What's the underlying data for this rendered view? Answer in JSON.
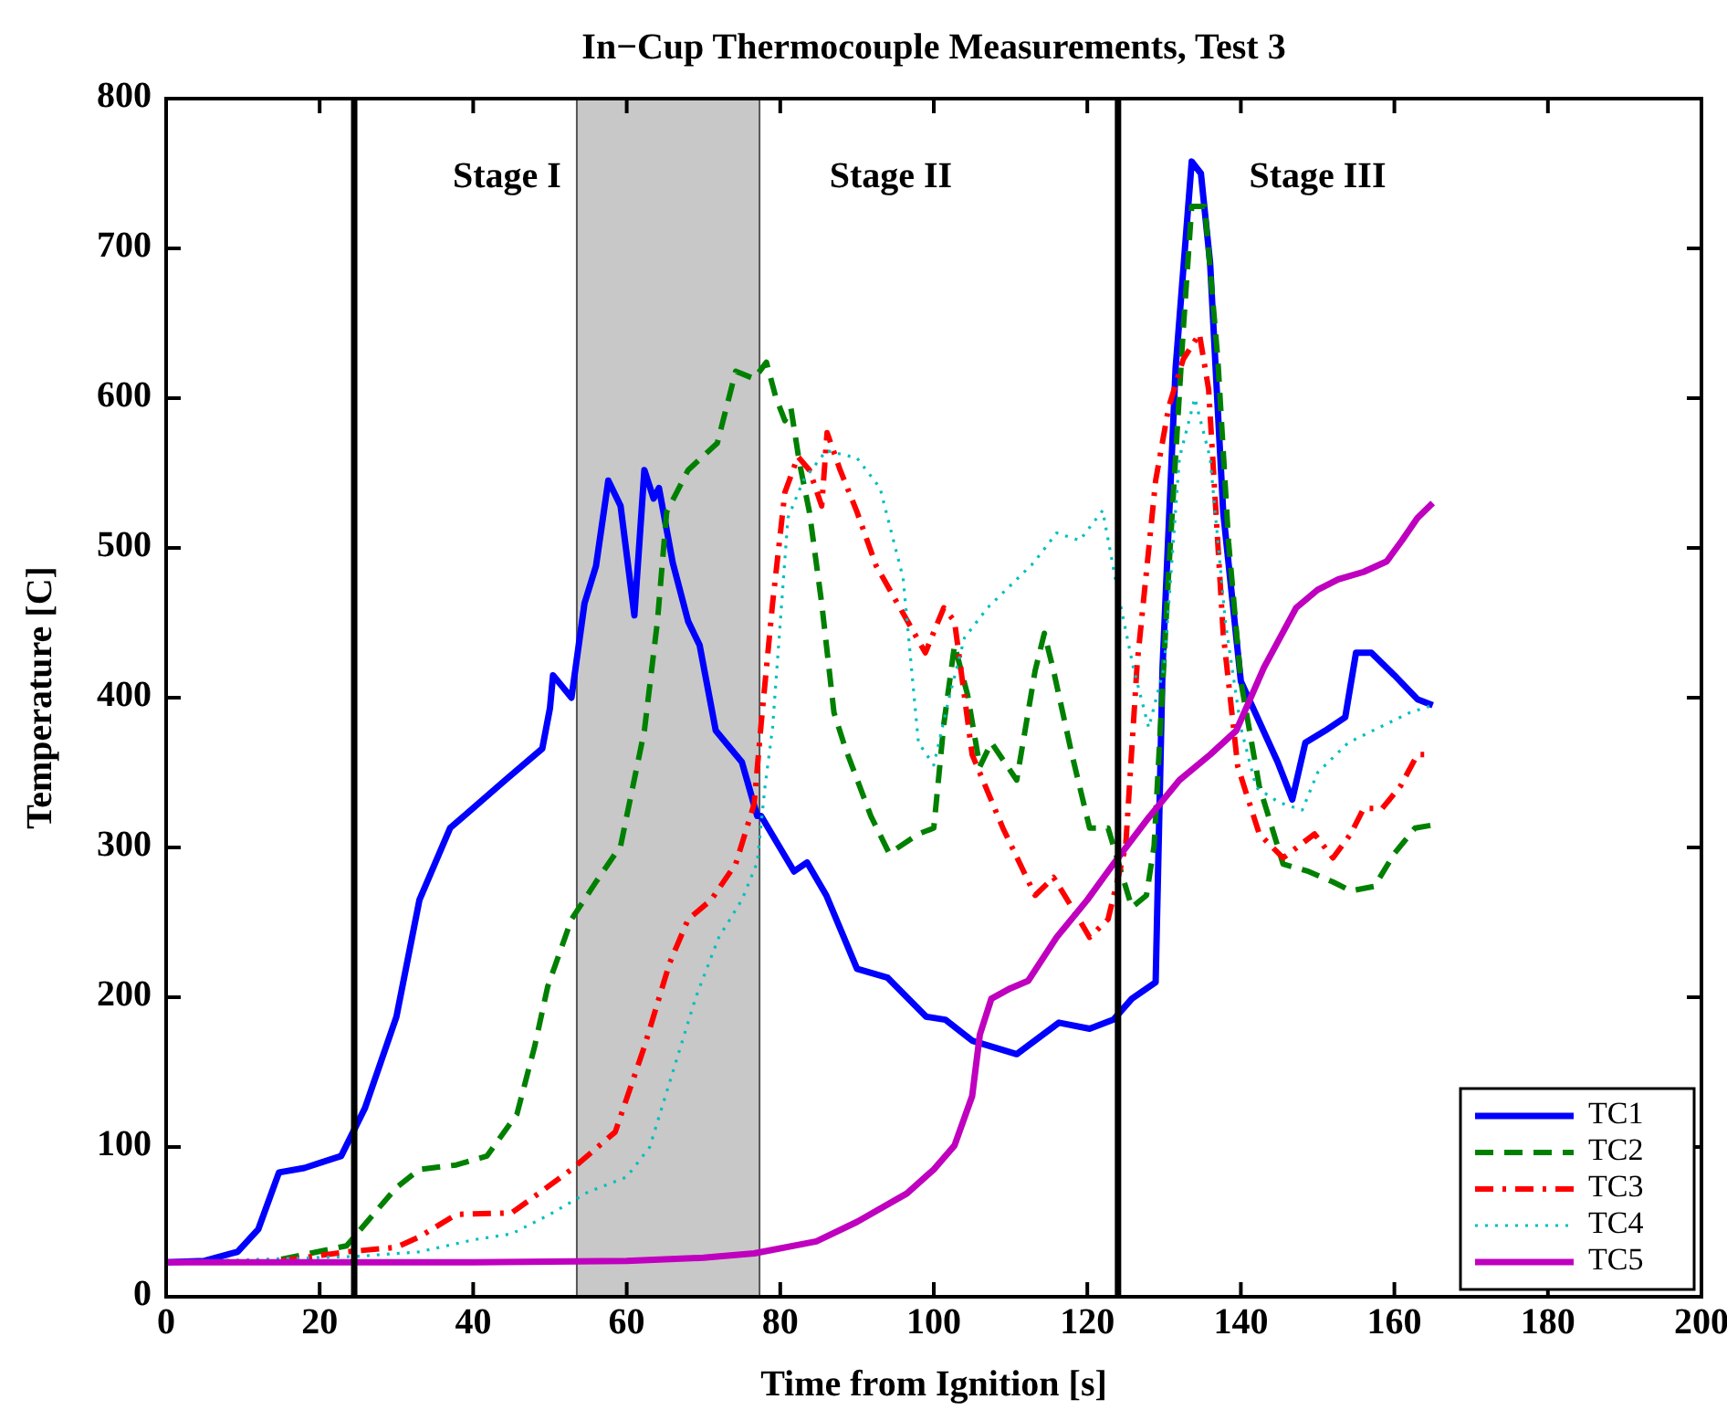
{
  "chart_data": {
    "type": "line",
    "title": "In−Cup Thermocouple Measurements, Test 3",
    "xlabel": "Time from Ignition [s]",
    "ylabel": "Temperature [C]",
    "xlim": [
      0,
      200
    ],
    "xticks": [
      0,
      20,
      40,
      60,
      80,
      100,
      120,
      140,
      160,
      180,
      200
    ],
    "ylim": [
      0,
      800
    ],
    "yticks": [
      0,
      100,
      200,
      300,
      400,
      500,
      600,
      700,
      800
    ],
    "grid": false,
    "legend": "bottom right",
    "series": [
      {
        "name": "TC1",
        "color": "#0000ff",
        "line_style": "solid",
        "x": [
          0,
          5,
          9.3,
          12,
          14.7,
          18,
          22.8,
          25.9,
          30,
          33,
          37,
          44.2,
          49,
          50,
          50.4,
          52.8,
          54.5,
          56,
          57.6,
          59.2,
          61,
          62.3,
          63.5,
          64.2,
          66,
          68,
          69.5,
          71.6,
          75,
          77,
          77.5,
          81.8,
          83.5,
          86,
          90,
          94,
          99,
          101.5,
          105,
          110.8,
          116.3,
          120.3,
          123.4,
          125.8,
          128.9,
          129.8,
          131.5,
          133.6,
          134.8,
          136,
          137.7,
          140,
          144.8,
          146.7,
          148.4,
          151,
          153.6,
          155,
          157,
          160,
          163,
          165
        ],
        "values": [
          23,
          24,
          30,
          45,
          83,
          86,
          94,
          126,
          187,
          265,
          313,
          345,
          366,
          393,
          415,
          400,
          463,
          488,
          545,
          528,
          455,
          552,
          533,
          540,
          490,
          451,
          435,
          378,
          357,
          321,
          321,
          284,
          290,
          268,
          219,
          213,
          187,
          185,
          171,
          162,
          183,
          179,
          185,
          199,
          210,
          420,
          620,
          758,
          750,
          690,
          524,
          411,
          357,
          332,
          370,
          378,
          387,
          430,
          430,
          415,
          399,
          395
        ]
      },
      {
        "name": "TC2",
        "color": "#008000",
        "line_style": "dashed",
        "x": [
          15,
          23.5,
          30,
          33,
          37.8,
          41.8,
          45.7,
          48,
          49.7,
          52.8,
          56,
          59.2,
          62.3,
          64,
          65.2,
          68,
          71.8,
          74.2,
          76.6,
          78.2,
          79.4,
          80.6,
          81.4,
          82.5,
          83.8,
          85.4,
          87,
          88.5,
          91.8,
          94.2,
          98,
          100,
          101.3,
          102.7,
          104.4,
          106,
          107.5,
          110.8,
          113.2,
          114.4,
          115.6,
          118,
          120.3,
          122.7,
          125.8,
          127.7,
          128.7,
          130.6,
          132.5,
          133.6,
          135.3,
          137,
          138.4,
          140,
          142.4,
          145.5,
          148.8,
          152,
          154.3,
          157.4,
          160,
          162.7,
          165
        ],
        "values": [
          25,
          34,
          73,
          85,
          88,
          94,
          122,
          167,
          207,
          252,
          277,
          301,
          378,
          451,
          524,
          552,
          570,
          618,
          613,
          624,
          601,
          585,
          593,
          557,
          524,
          463,
          390,
          366,
          321,
          296,
          309,
          313,
          382,
          435,
          402,
          354,
          370,
          345,
          418,
          443,
          418,
          362,
          313,
          313,
          260,
          268,
          301,
          484,
          646,
          728,
          728,
          626,
          504,
          411,
          341,
          289,
          284,
          277,
          271,
          274,
          296,
          313,
          315
        ]
      },
      {
        "name": "TC3",
        "color": "#ff0000",
        "line_style": "dashdot",
        "x": [
          15,
          23.5,
          30,
          33,
          37.8,
          45,
          48,
          52.8,
          58.5,
          62.3,
          65.6,
          68,
          71,
          74.2,
          76.6,
          77.5,
          79,
          80.6,
          82.3,
          83.8,
          85.4,
          86.1,
          87.8,
          90,
          92.5,
          95.6,
          98.9,
          101.3,
          102.7,
          105,
          109,
          113.2,
          115.6,
          118,
          120.3,
          122.7,
          125,
          126.5,
          128.9,
          130.6,
          132.5,
          134.6,
          135.8,
          137.7,
          139.6,
          142.4,
          145.5,
          149.6,
          152,
          154.3,
          156,
          158.4,
          160.8,
          163,
          165
        ],
        "values": [
          24,
          30,
          33,
          40,
          55,
          56,
          67,
          85,
          110,
          167,
          223,
          252,
          265,
          289,
          329,
          382,
          463,
          537,
          561,
          552,
          528,
          577,
          552,
          524,
          488,
          460,
          430,
          460,
          451,
          362,
          313,
          268,
          280,
          260,
          240,
          252,
          301,
          423,
          545,
          594,
          626,
          643,
          606,
          443,
          354,
          309,
          293,
          309,
          293,
          309,
          326,
          326,
          341,
          362,
          362
        ]
      },
      {
        "name": "TC4",
        "color": "#00bfbf",
        "line_style": "dotted",
        "x": [
          0,
          25,
          33,
          40,
          45,
          50,
          55,
          60,
          63,
          66,
          69,
          72,
          75,
          77,
          78,
          79,
          80,
          81,
          83,
          86,
          90,
          93,
          96,
          98,
          100,
          102,
          104,
          107,
          110,
          113,
          116,
          119,
          122,
          124,
          126,
          128,
          130,
          132,
          134,
          136,
          138,
          140,
          142,
          145,
          148,
          150,
          154,
          158,
          162,
          165
        ],
        "values": [
          23,
          27,
          30,
          38,
          42,
          55,
          70,
          80,
          100,
          150,
          200,
          240,
          265,
          290,
          340,
          380,
          450,
          520,
          545,
          565,
          560,
          540,
          480,
          370,
          355,
          400,
          440,
          460,
          475,
          490,
          510,
          505,
          525,
          470,
          420,
          380,
          420,
          560,
          600,
          560,
          450,
          380,
          340,
          330,
          325,
          350,
          370,
          380,
          390,
          395
        ]
      },
      {
        "name": "TC5",
        "color": "#bf00bf",
        "line_style": "solid",
        "x": [
          0,
          20,
          40,
          60,
          70,
          76.6,
          84.7,
          90,
          96.5,
          100,
          102.7,
          105,
          106,
          107.5,
          110,
          112.3,
          116,
          120,
          123.4,
          128,
          132,
          136,
          139.4,
          143,
          147.2,
          150,
          152.7,
          156,
          159,
          161,
          163,
          165
        ],
        "values": [
          23,
          23,
          23,
          24,
          26,
          29,
          37,
          50,
          69,
          85,
          101,
          134,
          175,
          199,
          206,
          211,
          240,
          265,
          289,
          320,
          345,
          362,
          378,
          420,
          460,
          472,
          479,
          484,
          491,
          505,
          520,
          530
        ]
      }
    ],
    "ref_lines": [
      {
        "axis": "x",
        "value": 24.5,
        "color": "#000000",
        "line_style": "solid"
      },
      {
        "axis": "x",
        "value": 124,
        "color": "#000000",
        "line_style": "solid"
      }
    ],
    "bands": [
      {
        "axis": "x",
        "from": 53.5,
        "to": 77.3,
        "color": "#c8c8c8"
      }
    ],
    "annotations": [
      "Stage I",
      "Stage II",
      "Stage III"
    ]
  }
}
